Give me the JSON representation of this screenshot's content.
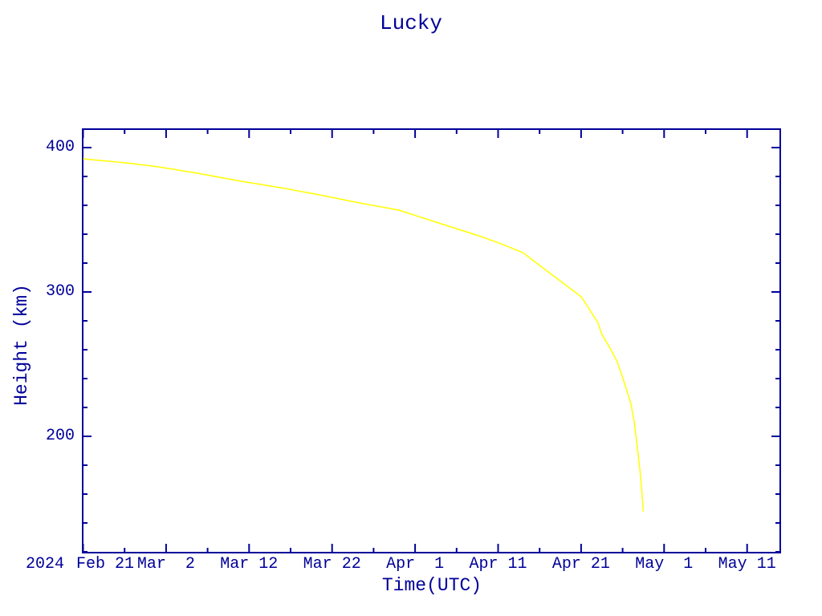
{
  "chart_data": {
    "type": "line",
    "title": "Lucky",
    "xlabel": "Time(UTC)",
    "ylabel": "Height (km)",
    "background": "#FFFFFF",
    "axis_color": "#000099",
    "grid": false,
    "legend": null,
    "x_axis": {
      "unit": "date",
      "year_label": "2024",
      "major_ticks": [
        {
          "day": 0,
          "label": "Feb 21"
        },
        {
          "day": 10,
          "label": "Mar  2"
        },
        {
          "day": 20,
          "label": "Mar 12"
        },
        {
          "day": 30,
          "label": "Mar 22"
        },
        {
          "day": 40,
          "label": "Apr  1"
        },
        {
          "day": 50,
          "label": "Apr 11"
        },
        {
          "day": 60,
          "label": "Apr 21"
        },
        {
          "day": 70,
          "label": "May  1"
        },
        {
          "day": 80,
          "label": "May 11"
        }
      ],
      "minor_tick_days": [
        5,
        15,
        25,
        35,
        45,
        55,
        65,
        75
      ],
      "range_days": [
        0,
        84
      ]
    },
    "y_axis": {
      "major_ticks": [
        {
          "km": 400,
          "label": "400"
        },
        {
          "km": 300,
          "label": "300"
        },
        {
          "km": 200,
          "label": "200"
        }
      ],
      "minor_ticks_km": [
        380,
        360,
        340,
        320,
        280,
        260,
        240,
        220,
        180,
        160,
        140,
        120
      ],
      "range_km": [
        120,
        412
      ]
    },
    "series": [
      {
        "name": "height",
        "color": "#FFFF00",
        "points_day_km": [
          [
            0,
            392.2
          ],
          [
            5,
            389.5
          ],
          [
            9,
            386.7
          ],
          [
            14,
            382.0
          ],
          [
            19,
            376.7
          ],
          [
            24,
            372.0
          ],
          [
            28.5,
            367.2
          ],
          [
            33,
            362.0
          ],
          [
            38,
            356.7
          ],
          [
            43,
            347.5
          ],
          [
            48,
            338.3
          ],
          [
            50.5,
            333.0
          ],
          [
            53,
            327.2
          ],
          [
            55,
            318.4
          ],
          [
            57.7,
            306.7
          ],
          [
            60,
            296.7
          ],
          [
            61,
            288.0
          ],
          [
            62,
            279.0
          ],
          [
            62.5,
            270.6
          ],
          [
            63.5,
            261.0
          ],
          [
            64.3,
            252.2
          ],
          [
            65,
            241.0
          ],
          [
            66,
            222.8
          ],
          [
            66.4,
            210.0
          ],
          [
            66.8,
            191.1
          ],
          [
            67.1,
            176.0
          ],
          [
            67.3,
            163.0
          ],
          [
            67.5,
            147.8
          ]
        ]
      }
    ]
  }
}
